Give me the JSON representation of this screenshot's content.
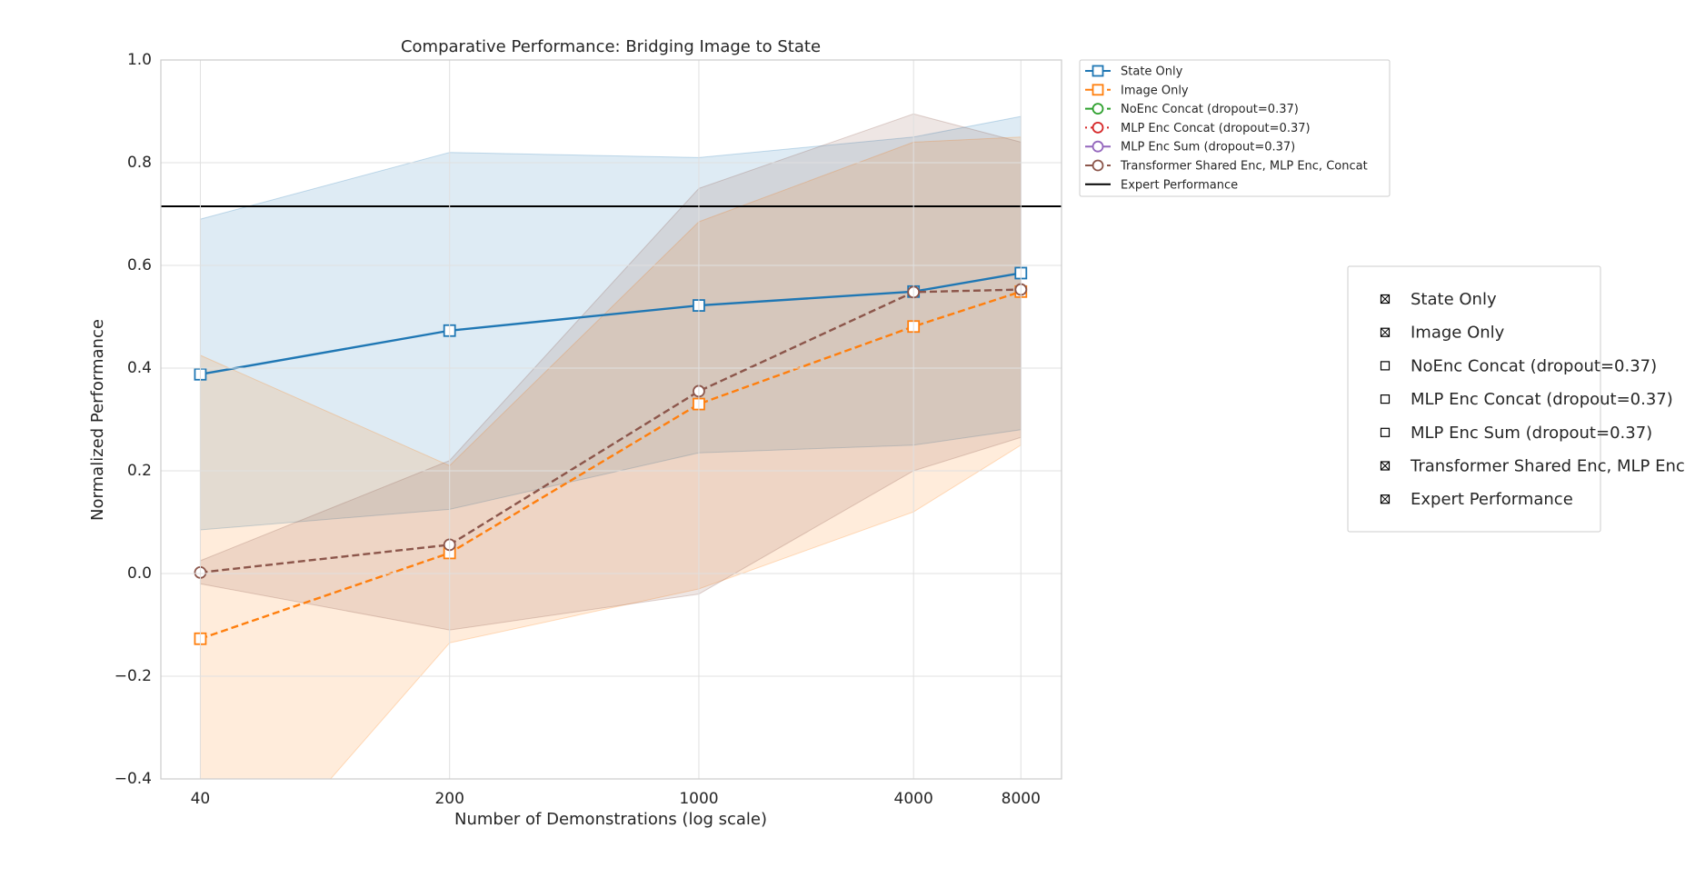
{
  "chart_data": {
    "type": "line",
    "title": "Comparative Performance: Bridging Image to State",
    "x_label": "Number of Demonstrations (log scale)",
    "y_label": "Normalized Performance",
    "x": [
      40,
      200,
      1000,
      4000,
      8000
    ],
    "xscale": "log",
    "xlim": [
      31,
      10400
    ],
    "xticks": [
      40,
      200,
      1000,
      4000,
      8000
    ],
    "ylim": [
      -0.4,
      1.0
    ],
    "yticks": [
      {
        "value": -0.4,
        "label": "−0.4"
      },
      {
        "value": -0.2,
        "label": "−0.2"
      },
      {
        "value": 0,
        "label": "0.0"
      },
      0.2,
      0.4,
      0.6,
      0.8,
      {
        "value": 1.0,
        "label": "1.0"
      }
    ],
    "grid": true,
    "series": [
      {
        "name": "State Only",
        "color": "#1f77b4",
        "linestyle": "solid",
        "marker": "square",
        "values": [
          0.388,
          0.473,
          0.522,
          0.549,
          0.585
        ],
        "lower": [
          0.085,
          0.125,
          0.235,
          0.25,
          0.28
        ],
        "upper": [
          0.69,
          0.82,
          0.81,
          0.85,
          0.89
        ]
      },
      {
        "name": "Image Only",
        "color": "#ff7f0e",
        "linestyle": "dashed",
        "marker": "square",
        "values": [
          -0.127,
          0.04,
          0.33,
          0.481,
          0.549
        ],
        "lower": [
          -0.69,
          -0.135,
          -0.03,
          0.12,
          0.25
        ],
        "upper": [
          0.425,
          0.21,
          0.685,
          0.84,
          0.85
        ]
      },
      {
        "name": "NoEnc Concat (dropout=0.37)",
        "color": "#2ca02c",
        "linestyle": "dashed",
        "marker": "circle",
        "values": [
          null,
          null,
          null,
          null,
          null
        ]
      },
      {
        "name": "MLP Enc Concat (dropout=0.37)",
        "color": "#d62728",
        "linestyle": "dotted",
        "marker": "circle",
        "values": [
          null,
          null,
          null,
          null,
          null
        ]
      },
      {
        "name": "MLP Enc Sum (dropout=0.37)",
        "color": "#9467bd",
        "linestyle": "solid",
        "marker": "circle",
        "values": [
          null,
          null,
          null,
          null,
          null
        ]
      },
      {
        "name": "Transformer Shared Enc, MLP Enc, Concat",
        "color": "#8c564b",
        "linestyle": "dashed",
        "marker": "circle",
        "values": [
          0.002,
          0.056,
          0.355,
          0.548,
          0.553
        ],
        "lower": [
          -0.02,
          -0.11,
          -0.04,
          0.2,
          0.265
        ],
        "upper": [
          0.025,
          0.22,
          0.75,
          0.895,
          0.84
        ]
      }
    ],
    "expert": {
      "name": "Expert Performance",
      "value": 0.715,
      "color": "#000000"
    }
  }
}
